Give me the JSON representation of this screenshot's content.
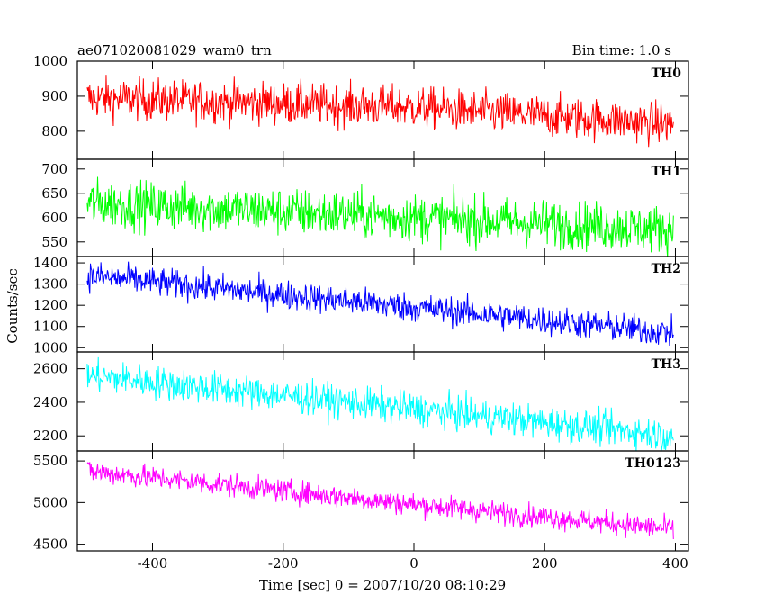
{
  "chart_data": {
    "type": "line",
    "title": "ae071020081029_wam0_trn",
    "bin_time": "Bin time: 1.0 s",
    "xlabel": "Time [sec] 0 = 2007/10/20 08:10:29",
    "ylabel": "Counts/sec",
    "xlim": [
      -515,
      420
    ],
    "x_ticks": [
      -400,
      -200,
      0,
      200,
      400
    ],
    "x_data_range": [
      -500,
      397
    ],
    "grid": false,
    "panels": [
      {
        "name": "TH0",
        "color": "#ff0000",
        "ylim": [
          720,
          1000
        ],
        "y_ticks": [
          800,
          900,
          1000
        ],
        "trend": [
          {
            "x": -500,
            "y": 895
          },
          {
            "x": 0,
            "y": 868
          },
          {
            "x": 397,
            "y": 820
          }
        ],
        "noise": 30
      },
      {
        "name": "TH1",
        "color": "#00ff00",
        "ylim": [
          520,
          720
        ],
        "y_ticks": [
          550,
          600,
          650,
          700
        ],
        "trend": [
          {
            "x": -500,
            "y": 630
          },
          {
            "x": 0,
            "y": 600
          },
          {
            "x": 397,
            "y": 575
          }
        ],
        "noise": 25
      },
      {
        "name": "TH2",
        "color": "#0000ff",
        "ylim": [
          980,
          1430
        ],
        "y_ticks": [
          1000,
          1100,
          1200,
          1300,
          1400
        ],
        "trend": [
          {
            "x": -500,
            "y": 1340
          },
          {
            "x": 0,
            "y": 1190
          },
          {
            "x": 397,
            "y": 1070
          }
        ],
        "noise": 35
      },
      {
        "name": "TH3",
        "color": "#00ffff",
        "ylim": [
          2110,
          2700
        ],
        "y_ticks": [
          2200,
          2400,
          2600
        ],
        "trend": [
          {
            "x": -500,
            "y": 2560
          },
          {
            "x": 0,
            "y": 2360
          },
          {
            "x": 397,
            "y": 2200
          }
        ],
        "noise": 50
      },
      {
        "name": "TH0123",
        "color": "#ff00ff",
        "ylim": [
          4420,
          5620
        ],
        "y_ticks": [
          4500,
          5000,
          5500
        ],
        "trend": [
          {
            "x": -500,
            "y": 5380
          },
          {
            "x": 0,
            "y": 4980
          },
          {
            "x": 397,
            "y": 4680
          }
        ],
        "noise": 70
      }
    ]
  }
}
